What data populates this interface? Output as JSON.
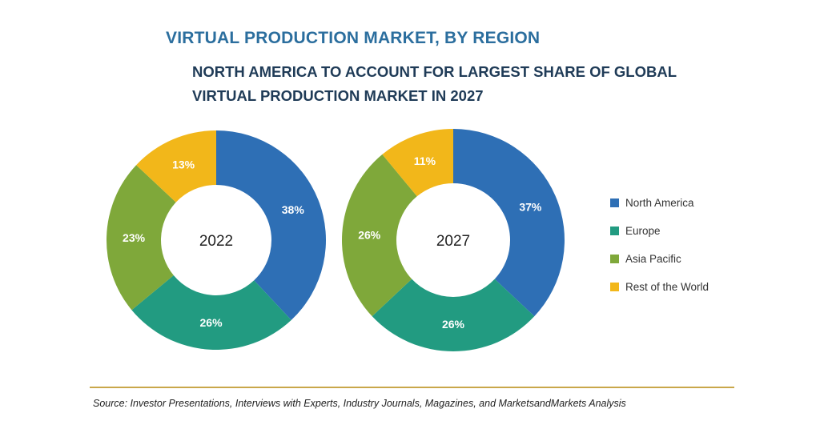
{
  "title": "VIRTUAL PRODUCTION MARKET, BY REGION",
  "subtitle": "NORTH AMERICA TO ACCOUNT FOR LARGEST SHARE OF GLOBAL VIRTUAL PRODUCTION MARKET IN 2027",
  "legend": [
    {
      "label": "North America",
      "color": "#2e6fb5"
    },
    {
      "label": "Europe",
      "color": "#229b81"
    },
    {
      "label": "Asia Pacific",
      "color": "#7fa83a"
    },
    {
      "label": "Rest of the World",
      "color": "#f2b71a"
    }
  ],
  "source": "Source: Investor Presentations, Interviews with Experts, Industry Journals, Magazines, and MarketsandMarkets Analysis",
  "chart_data": [
    {
      "type": "pie",
      "center_label": "2022",
      "categories": [
        "North America",
        "Europe",
        "Asia Pacific",
        "Rest of the World"
      ],
      "values": [
        38,
        26,
        23,
        13
      ],
      "data_labels": [
        "38%",
        "26%",
        "23%",
        "13%"
      ],
      "colors": [
        "#2e6fb5",
        "#229b81",
        "#7fa83a",
        "#f2b71a"
      ]
    },
    {
      "type": "pie",
      "center_label": "2027",
      "categories": [
        "North America",
        "Europe",
        "Asia Pacific",
        "Rest of the World"
      ],
      "values": [
        37,
        26,
        26,
        11
      ],
      "data_labels": [
        "37%",
        "26%",
        "26%",
        "11%"
      ],
      "colors": [
        "#2e6fb5",
        "#229b81",
        "#7fa83a",
        "#f2b71a"
      ]
    }
  ]
}
